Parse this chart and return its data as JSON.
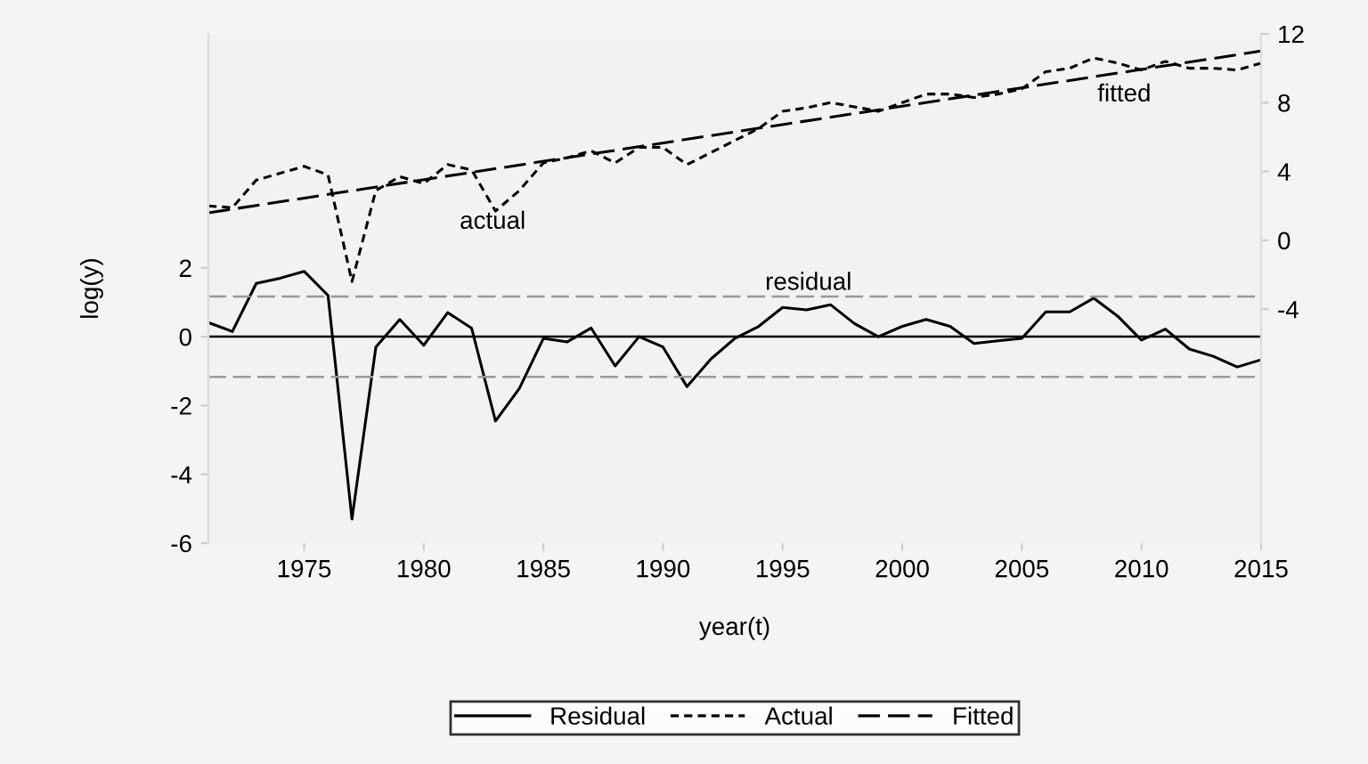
{
  "chart_data": {
    "type": "line",
    "xlabel": "year(t)",
    "ylabel": "log(y)",
    "x": [
      1971,
      1972,
      1973,
      1974,
      1975,
      1976,
      1977,
      1978,
      1979,
      1980,
      1981,
      1982,
      1983,
      1984,
      1985,
      1986,
      1987,
      1988,
      1989,
      1990,
      1991,
      1992,
      1993,
      1994,
      1995,
      1996,
      1997,
      1998,
      1999,
      2000,
      2001,
      2002,
      2003,
      2004,
      2005,
      2006,
      2007,
      2008,
      2009,
      2010,
      2011,
      2012,
      2013,
      2014,
      2015
    ],
    "series": [
      {
        "name": "Residual",
        "color": "#000000",
        "line_style": "solid",
        "values": [
          0.41,
          0.15,
          1.55,
          1.7,
          1.9,
          1.2,
          -5.3,
          -0.3,
          0.5,
          -0.25,
          0.7,
          0.25,
          -2.45,
          -1.5,
          -0.05,
          -0.15,
          0.25,
          -0.85,
          0,
          -0.3,
          -1.45,
          -0.65,
          -0.05,
          0.3,
          0.85,
          0.78,
          0.93,
          0.38,
          0,
          0.3,
          0.5,
          0.3,
          -0.2,
          -0.12,
          -0.05,
          0.72,
          0.72,
          1.12,
          0.6,
          -0.1,
          0.22,
          -0.36,
          -0.57,
          -0.88,
          -0.67
        ]
      },
      {
        "name": "Actual",
        "color": "#000000",
        "line_style": "dotted",
        "axis": "y2",
        "values": [
          2.0,
          1.9,
          3.5,
          3.9,
          4.3,
          3.8,
          -2.4,
          2.9,
          3.7,
          3.3,
          4.4,
          4.1,
          1.7,
          2.9,
          4.5,
          4.8,
          5.2,
          4.5,
          5.4,
          5.4,
          4.4,
          5.1,
          5.8,
          6.5,
          7.5,
          7.7,
          8.0,
          7.76,
          7.5,
          8.0,
          8.5,
          8.5,
          8.3,
          8.5,
          8.8,
          9.8,
          10.0,
          10.6,
          10.3,
          9.9,
          10.4,
          10.0,
          10.0,
          9.9,
          10.3
        ]
      },
      {
        "name": "Fitted",
        "color": "#000000",
        "line_style": "dashed",
        "axis": "y2",
        "x": [
          1971,
          2015
        ],
        "values": [
          1.6,
          11.0
        ]
      }
    ],
    "xlim": [
      1971,
      2015
    ],
    "xticks": [
      1975,
      1980,
      1985,
      1990,
      1995,
      2000,
      2005,
      2010,
      2015
    ],
    "ylim": [
      -6,
      8.8
    ],
    "yticks": [
      -6,
      -4,
      -2,
      0,
      2
    ],
    "y2lim": [
      -17.6,
      12
    ],
    "y2ticks": [
      -4,
      0,
      4,
      8,
      12
    ],
    "ref_lines": [
      {
        "axis": "y",
        "value": 1.17,
        "color": "#999999",
        "line_style": "dashed"
      },
      {
        "axis": "y",
        "value": 0,
        "color": "#000000",
        "line_style": "solid"
      },
      {
        "axis": "y",
        "value": -1.17,
        "color": "#999999",
        "line_style": "dashed"
      }
    ],
    "annotations": [
      "actual",
      "fitted",
      "residual"
    ],
    "legend": "bottom",
    "grid": false
  }
}
